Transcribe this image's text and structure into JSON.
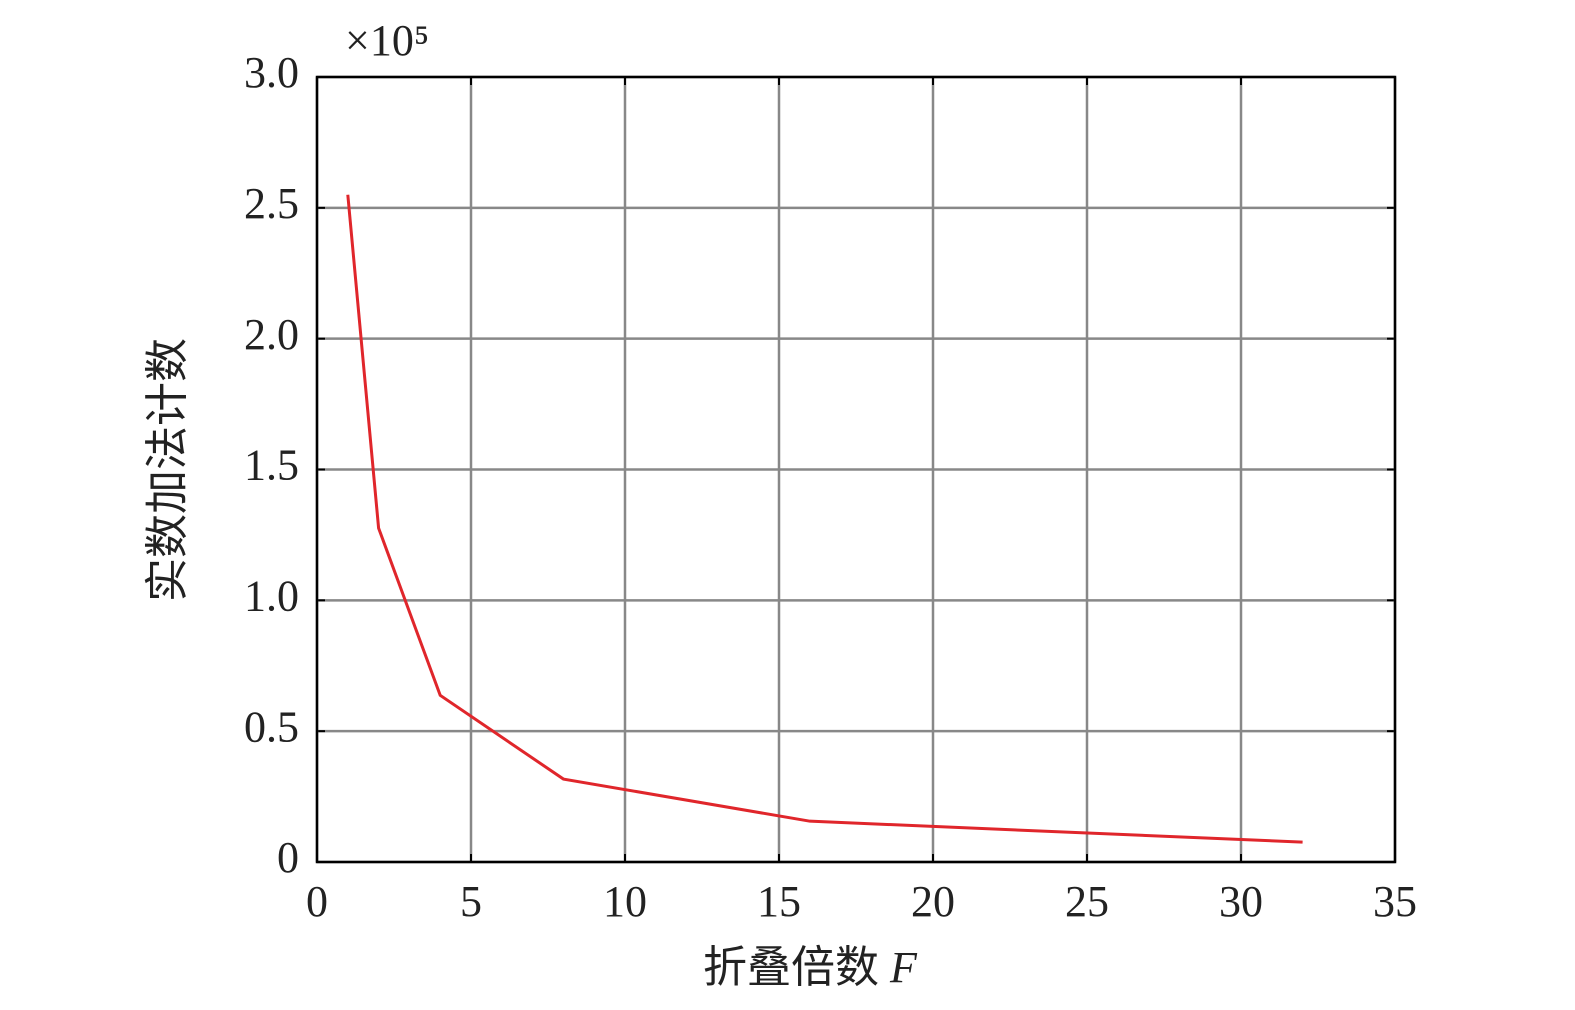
{
  "chart_data": {
    "type": "line",
    "xlabel": "折叠倍数",
    "xlabel_var": "F",
    "ylabel": "实数加法计数",
    "y_scale_label": "×10⁵",
    "x": [
      1,
      2,
      4,
      8,
      16,
      32
    ],
    "series": [
      {
        "name": "实数加法计数",
        "color": "#e0262b",
        "values": [
          2.55,
          1.276,
          0.637,
          0.317,
          0.156,
          0.076
        ]
      }
    ],
    "xlim": [
      0,
      35
    ],
    "xticks": [
      0,
      5,
      10,
      15,
      20,
      25,
      30,
      35
    ],
    "ylim": [
      0,
      3
    ],
    "yticks": [
      0,
      0.5,
      {
        "value": 1,
        "label": "1.0"
      },
      1.5,
      {
        "value": 2,
        "label": "2.0"
      },
      2.5,
      {
        "value": 3,
        "label": "3.0"
      }
    ],
    "grid": true
  }
}
